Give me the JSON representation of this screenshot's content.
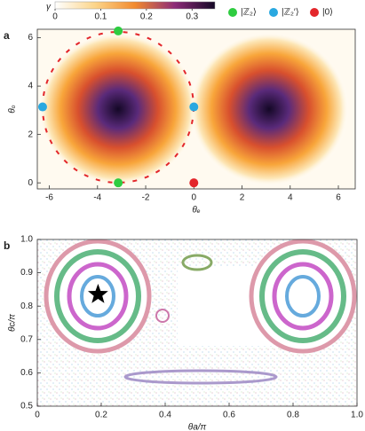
{
  "chart_data": [
    {
      "type": "scatter",
      "panel": "a",
      "xlabel": "θₑ",
      "ylabel": "θₒ",
      "xlim": [
        -6.5,
        6.7
      ],
      "xticks": [
        -6,
        -4,
        -2,
        0,
        2,
        4,
        6
      ],
      "ylim": [
        -0.25,
        6.35
      ],
      "yticks": [
        0,
        2,
        4,
        6
      ],
      "colorbar": {
        "label": "γ",
        "lim": [
          0,
          0.35
        ],
        "ticks": [
          0,
          0.1,
          0.2,
          0.3
        ]
      },
      "series": [
        {
          "name": "|ℤ₂⟩",
          "color": "#2ecc40",
          "x": [
            -3.14,
            -3.14
          ],
          "values": [
            0,
            6.28
          ]
        },
        {
          "name": "|ℤ₂′⟩",
          "color": "#29a8e0",
          "x": [
            -6.28,
            0
          ],
          "values": [
            3.14,
            3.14
          ]
        },
        {
          "name": "|0⟩",
          "color": "#e3262b",
          "x": [
            0
          ],
          "values": [
            0
          ]
        }
      ]
    },
    {
      "type": "scatter",
      "panel": "b",
      "xlabel": "θa/π",
      "ylabel": "θc/π",
      "xlim": [
        0,
        1
      ],
      "xticks": [
        0,
        0.2,
        0.4,
        0.6,
        0.8,
        {
          "value": 1,
          "label": "1.0"
        }
      ],
      "ylim": [
        0.5,
        1
      ],
      "yticks": [
        0.5,
        0.6,
        0.7,
        0.8,
        0.9,
        {
          "value": 1,
          "label": "1.0"
        }
      ],
      "series": [
        {
          "color": "#000000",
          "x": [
            0.19
          ],
          "values": [
            0.835
          ]
        }
      ]
    }
  ]
}
